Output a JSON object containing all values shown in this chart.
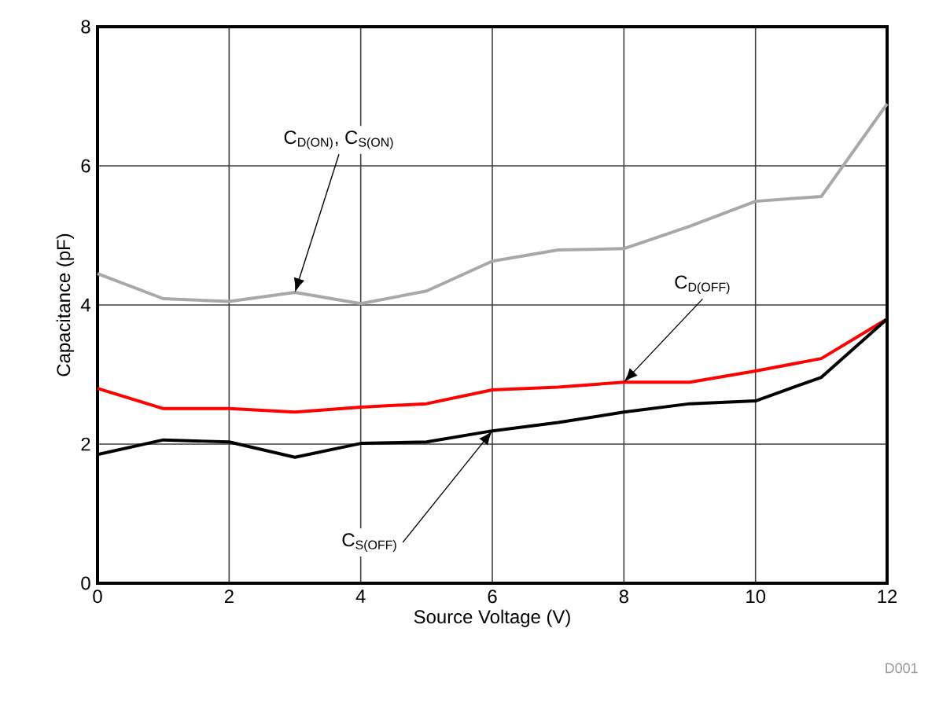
{
  "chart_data": {
    "type": "line",
    "xlabel": "Source Voltage (V)",
    "ylabel": "Capacitance (pF)",
    "x": [
      0,
      1,
      2,
      3,
      4,
      5,
      6,
      7,
      8,
      9,
      10,
      11,
      12
    ],
    "series": [
      {
        "color": "#a8a8a8",
        "values": [
          4.45,
          4.09,
          4.05,
          4.18,
          4.02,
          4.2,
          4.63,
          4.79,
          4.81,
          5.13,
          5.49,
          5.56,
          6.89
        ]
      },
      {
        "color": "#ff0000",
        "values": [
          2.8,
          2.51,
          2.51,
          2.46,
          2.53,
          2.58,
          2.78,
          2.82,
          2.89,
          2.89,
          3.05,
          3.23,
          3.8
        ]
      },
      {
        "color": "#000000",
        "values": [
          1.85,
          2.06,
          2.03,
          1.81,
          2.01,
          2.03,
          2.19,
          2.31,
          2.46,
          2.58,
          2.62,
          2.96,
          3.8
        ]
      }
    ],
    "xlim": [
      0,
      12
    ],
    "ylim": [
      0,
      8
    ],
    "xticks": [
      0,
      2,
      4,
      6,
      8,
      10,
      12
    ],
    "yticks": [
      0,
      2,
      4,
      6,
      8
    ],
    "grid": true,
    "marker": "none",
    "line_style": "solid",
    "annotations": [
      {
        "text": "C$_{D(ON)}$, C$_{S(ON)}$",
        "x": 3,
        "y": 4.18
      },
      {
        "text": "C$_{D(OFF)}$",
        "x": 8,
        "y": 2.89
      },
      {
        "text": "C$_{S(OFF)}$",
        "x": 6,
        "y": 2.19
      },
      "D001"
    ]
  }
}
